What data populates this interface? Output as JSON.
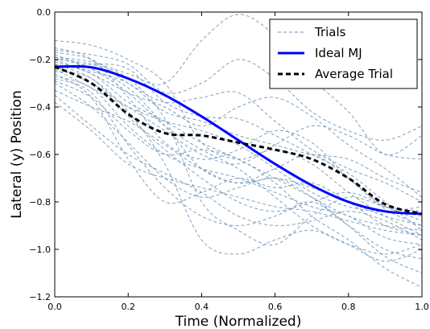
{
  "chart_data": {
    "type": "line",
    "title": "",
    "xlabel": "Time (Normalized)",
    "ylabel": "Lateral (y) Position",
    "xlim": [
      0.0,
      1.0
    ],
    "ylim": [
      -1.2,
      0.0
    ],
    "x_ticks": [
      0.0,
      0.2,
      0.4,
      0.6,
      0.8,
      1.0
    ],
    "x_tick_labels": [
      "0.0",
      "0.2",
      "0.4",
      "0.6",
      "0.8",
      "1.0"
    ],
    "y_ticks": [
      0.0,
      -0.2,
      -0.4,
      -0.6,
      -0.8,
      -1.0,
      -1.2
    ],
    "y_tick_labels": [
      "0.0",
      "−0.2",
      "−0.4",
      "−0.6",
      "−0.8",
      "−1.0",
      "−1.2"
    ],
    "grid": false,
    "legend_position": "top-right",
    "legend": [
      "Trials",
      "Ideal MJ",
      "Average Trial"
    ],
    "x": [
      0.0,
      0.1,
      0.2,
      0.3,
      0.4,
      0.5,
      0.6,
      0.7,
      0.8,
      0.9,
      1.0
    ],
    "series": [
      {
        "name": "Ideal MJ",
        "color": "#0000ff",
        "style": "solid",
        "values": [
          -0.23,
          -0.233,
          -0.28,
          -0.35,
          -0.44,
          -0.54,
          -0.64,
          -0.73,
          -0.8,
          -0.84,
          -0.85
        ]
      },
      {
        "name": "Average Trial",
        "color": "#000000",
        "style": "dashed",
        "values": [
          -0.23,
          -0.3,
          -0.43,
          -0.51,
          -0.52,
          -0.55,
          -0.58,
          -0.62,
          -0.7,
          -0.81,
          -0.85
        ]
      },
      {
        "name": "Trials",
        "color": "#6a8fb0",
        "style": "dashed",
        "trials": [
          [
            -0.19,
            -0.21,
            -0.26,
            -0.3,
            -0.12,
            -0.01,
            -0.1,
            -0.28,
            -0.42,
            -0.6,
            -0.52
          ],
          [
            -0.22,
            -0.26,
            -0.38,
            -0.46,
            -0.55,
            -0.62,
            -0.7,
            -0.78,
            -0.86,
            -0.9,
            -0.92
          ],
          [
            -0.27,
            -0.32,
            -0.48,
            -0.6,
            -0.66,
            -0.7,
            -0.76,
            -0.82,
            -0.86,
            -0.95,
            -0.98
          ],
          [
            -0.15,
            -0.2,
            -0.36,
            -0.55,
            -0.62,
            -0.58,
            -0.5,
            -0.55,
            -0.7,
            -0.83,
            -0.9
          ],
          [
            -0.3,
            -0.4,
            -0.55,
            -0.7,
            -0.78,
            -0.74,
            -0.7,
            -0.78,
            -0.9,
            -1.03,
            -1.1
          ],
          [
            -0.2,
            -0.22,
            -0.28,
            -0.45,
            -0.8,
            -0.92,
            -0.98,
            -0.86,
            -0.78,
            -0.82,
            -0.84
          ],
          [
            -0.24,
            -0.22,
            -0.24,
            -0.38,
            -0.44,
            -0.45,
            -0.52,
            -0.6,
            -0.68,
            -0.8,
            -0.92
          ],
          [
            -0.12,
            -0.14,
            -0.2,
            -0.3,
            -0.55,
            -0.62,
            -0.58,
            -0.64,
            -0.76,
            -0.86,
            -0.94
          ],
          [
            -0.35,
            -0.48,
            -0.6,
            -0.68,
            -0.76,
            -0.86,
            -0.9,
            -0.88,
            -0.84,
            -0.88,
            -0.96
          ],
          [
            -0.18,
            -0.24,
            -0.34,
            -0.48,
            -0.58,
            -0.66,
            -0.78,
            -0.9,
            -0.98,
            -1.05,
            -1.0
          ],
          [
            -0.26,
            -0.36,
            -0.62,
            -0.8,
            -0.76,
            -0.7,
            -0.74,
            -0.72,
            -0.8,
            -0.9,
            -0.94
          ],
          [
            -0.21,
            -0.25,
            -0.3,
            -0.42,
            -0.46,
            -0.52,
            -0.56,
            -0.6,
            -0.62,
            -0.7,
            -0.76
          ],
          [
            -0.33,
            -0.4,
            -0.46,
            -0.56,
            -0.66,
            -0.72,
            -0.66,
            -0.6,
            -0.7,
            -0.82,
            -0.86
          ],
          [
            -0.16,
            -0.18,
            -0.22,
            -0.34,
            -0.3,
            -0.2,
            -0.28,
            -0.42,
            -0.5,
            -0.54,
            -0.48
          ],
          [
            -0.28,
            -0.34,
            -0.56,
            -0.74,
            -0.86,
            -0.9,
            -0.86,
            -0.8,
            -0.9,
            -1.0,
            -1.04
          ],
          [
            -0.23,
            -0.3,
            -0.4,
            -0.5,
            -0.6,
            -0.64,
            -0.56,
            -0.48,
            -0.52,
            -0.6,
            -0.62
          ],
          [
            -0.25,
            -0.28,
            -0.44,
            -0.58,
            -0.7,
            -0.8,
            -0.84,
            -0.8,
            -0.76,
            -0.82,
            -0.88
          ],
          [
            -0.38,
            -0.5,
            -0.64,
            -0.7,
            -0.74,
            -0.78,
            -0.82,
            -0.84,
            -0.88,
            -0.92,
            -0.94
          ],
          [
            -0.2,
            -0.26,
            -0.34,
            -0.4,
            -0.48,
            -0.4,
            -0.36,
            -0.44,
            -0.56,
            -0.66,
            -0.78
          ],
          [
            -0.22,
            -0.28,
            -0.42,
            -0.64,
            -0.96,
            -1.02,
            -0.96,
            -0.92,
            -0.98,
            -1.02,
            -0.98
          ],
          [
            -0.17,
            -0.2,
            -0.3,
            -0.38,
            -0.36,
            -0.34,
            -0.46,
            -0.58,
            -0.66,
            -0.72,
            -0.8
          ],
          [
            -0.29,
            -0.36,
            -0.5,
            -0.6,
            -0.58,
            -0.62,
            -0.72,
            -0.86,
            -0.96,
            -1.08,
            -1.16
          ],
          [
            -0.24,
            -0.32,
            -0.4,
            -0.46,
            -0.5,
            -0.56,
            -0.66,
            -0.76,
            -0.82,
            -0.84,
            -0.82
          ],
          [
            -0.19,
            -0.24,
            -0.32,
            -0.48,
            -0.66,
            -0.72,
            -0.7,
            -0.74,
            -0.8,
            -0.86,
            -0.9
          ]
        ]
      }
    ]
  }
}
